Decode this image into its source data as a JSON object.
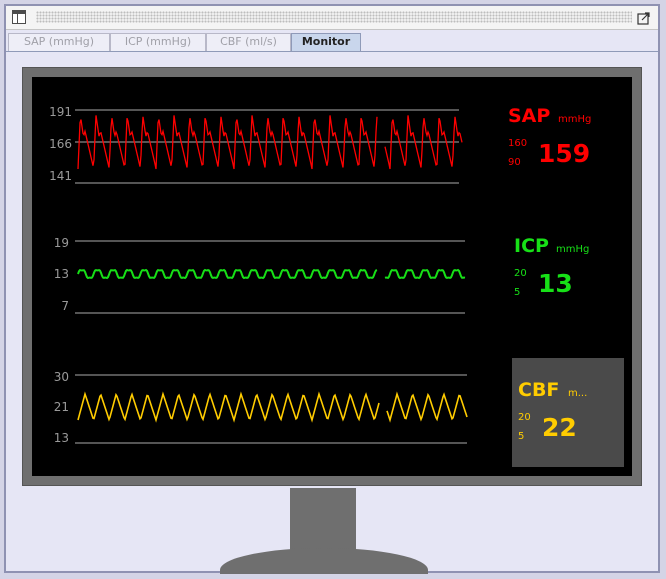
{
  "window": {
    "icon": "window-icon",
    "maximize_icon": "maximize-icon"
  },
  "tabs": [
    {
      "label": "SAP (mmHg)",
      "active": false
    },
    {
      "label": "ICP (mmHg)",
      "active": false
    },
    {
      "label": "CBF (ml/s)",
      "active": false
    },
    {
      "label": "Monitor",
      "active": true
    }
  ],
  "monitor": {
    "sap": {
      "label": "SAP",
      "unit": "mmHg",
      "high": "160",
      "low": "90",
      "value": "159",
      "ticks": [
        "191",
        "166",
        "141"
      ],
      "color": "#ff0000"
    },
    "icp": {
      "label": "ICP",
      "unit": "mmHg",
      "high": "20",
      "low": "5",
      "value": "13",
      "ticks": [
        "19",
        "13",
        "7"
      ],
      "color": "#17e017"
    },
    "cbf": {
      "label": "CBF",
      "unit": "m...",
      "high": "20",
      "low": "5",
      "value": "22",
      "ticks": [
        "30",
        "21",
        "13"
      ],
      "color": "#ffcc00"
    }
  }
}
